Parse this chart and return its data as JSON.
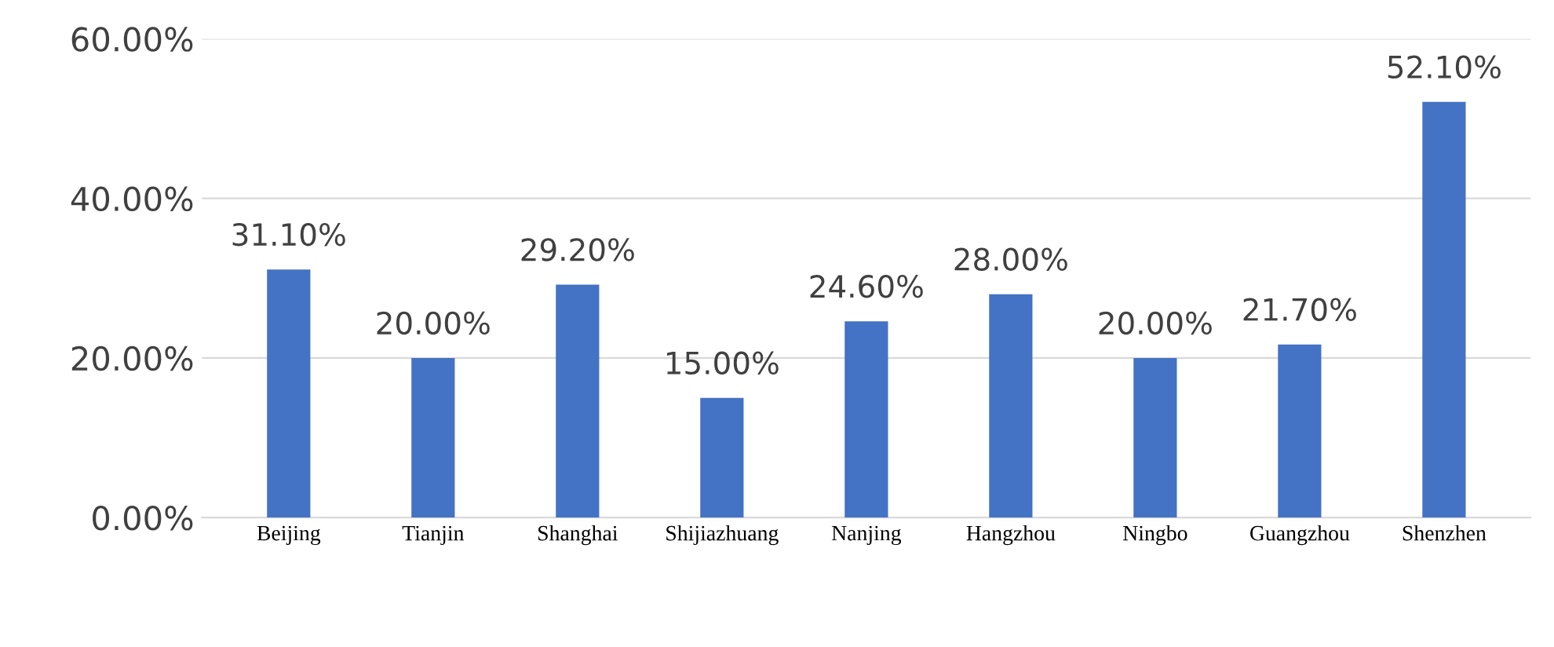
{
  "chart_data": {
    "type": "bar",
    "categories": [
      "Beijing",
      "Tianjin",
      "Shanghai",
      "Shijiazhuang",
      "Nanjing",
      "Hangzhou",
      "Ningbo",
      "Guangzhou",
      "Shenzhen"
    ],
    "values": [
      31.1,
      20.0,
      29.2,
      15.0,
      24.6,
      28.0,
      20.0,
      21.7,
      52.1
    ],
    "value_labels": [
      "31.10%",
      "20.00%",
      "29.20%",
      "15.00%",
      "24.60%",
      "28.00%",
      "20.00%",
      "21.70%",
      "52.10%"
    ],
    "color": "#4472c4",
    "ylim": [
      0,
      60
    ],
    "yticks": [
      {
        "value": 0,
        "label": "0.00%"
      },
      {
        "value": 20,
        "label": "20.00%"
      },
      {
        "value": 40,
        "label": "40.00%"
      },
      {
        "value": 60,
        "label": "60.00%"
      }
    ],
    "grid": "y"
  }
}
